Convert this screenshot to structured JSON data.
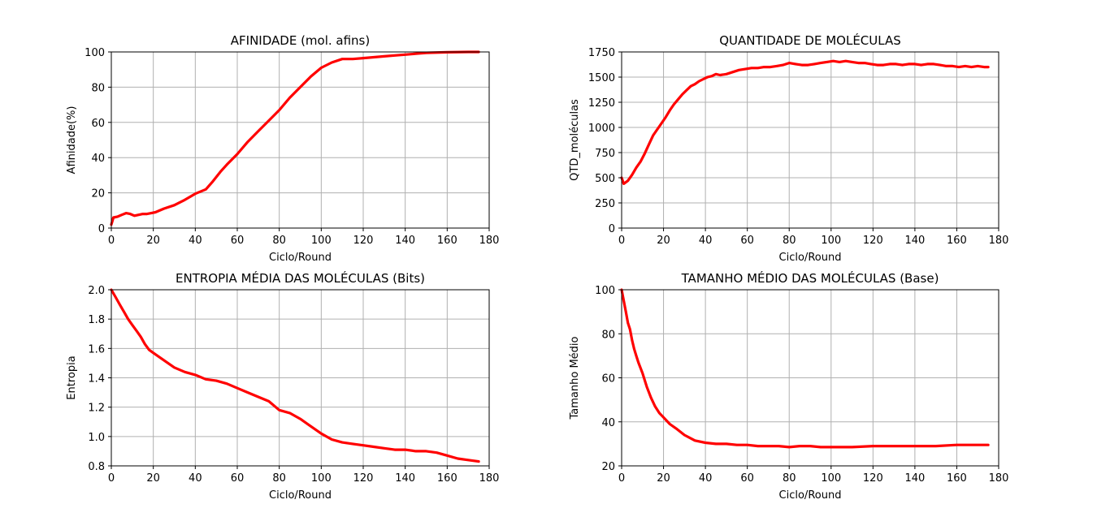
{
  "chart_data": [
    {
      "type": "line",
      "title": "AFINIDADE (mol. afins)",
      "xlabel": "Ciclo/Round",
      "ylabel": "Afinidade(%)",
      "xlim": [
        0,
        180
      ],
      "ylim": [
        0,
        100
      ],
      "xticks": [
        0,
        20,
        40,
        60,
        80,
        100,
        120,
        140,
        160,
        180
      ],
      "yticks": [
        0,
        20,
        40,
        60,
        80,
        100
      ],
      "ytick_labels": [
        "0",
        "20",
        "40",
        "60",
        "80",
        "100"
      ],
      "grid": true,
      "color": "#ff0000",
      "series": [
        {
          "x": [
            0,
            1,
            3,
            5,
            7,
            9,
            11,
            13,
            15,
            17,
            19,
            21,
            25,
            30,
            35,
            40,
            45,
            48,
            52,
            55,
            60,
            65,
            70,
            75,
            80,
            85,
            90,
            95,
            100,
            105,
            110,
            115,
            120,
            125,
            130,
            135,
            140,
            145,
            150,
            160,
            170,
            175
          ],
          "y": [
            2,
            6,
            6.5,
            7.5,
            8.5,
            8,
            7,
            7.5,
            8,
            8,
            8.5,
            9,
            11,
            13,
            16,
            19.5,
            22,
            26,
            32,
            36,
            42,
            49,
            55,
            61,
            67,
            74,
            80,
            86,
            91,
            94,
            96,
            96,
            96.5,
            97,
            97.5,
            98,
            98.5,
            99,
            99.5,
            99.8,
            100,
            100
          ]
        }
      ]
    },
    {
      "type": "line",
      "title": "QUANTIDADE DE MOLÉCULAS",
      "xlabel": "Ciclo/Round",
      "ylabel": "QTD_moléculas",
      "xlim": [
        0,
        180
      ],
      "ylim": [
        0,
        1750
      ],
      "xticks": [
        0,
        20,
        40,
        60,
        80,
        100,
        120,
        140,
        160,
        180
      ],
      "yticks": [
        0,
        250,
        500,
        750,
        1000,
        1250,
        1500,
        1750
      ],
      "ytick_labels": [
        "0",
        "250",
        "500",
        "750",
        "1000",
        "1250",
        "1500",
        "1750"
      ],
      "grid": true,
      "color": "#ff0000",
      "series": [
        {
          "x": [
            0,
            1,
            3,
            5,
            7,
            9,
            11,
            13,
            15,
            17,
            19,
            21,
            23,
            25,
            27,
            29,
            31,
            33,
            35,
            37,
            39,
            41,
            43,
            45,
            47,
            50,
            53,
            56,
            59,
            62,
            65,
            68,
            71,
            74,
            77,
            80,
            83,
            86,
            89,
            92,
            95,
            98,
            101,
            104,
            107,
            110,
            113,
            116,
            119,
            122,
            125,
            128,
            131,
            134,
            137,
            140,
            143,
            146,
            149,
            152,
            155,
            158,
            161,
            164,
            167,
            170,
            173,
            175
          ],
          "y": [
            500,
            440,
            470,
            530,
            600,
            660,
            740,
            830,
            920,
            980,
            1040,
            1100,
            1170,
            1230,
            1280,
            1330,
            1370,
            1410,
            1430,
            1460,
            1480,
            1500,
            1510,
            1530,
            1520,
            1530,
            1550,
            1570,
            1580,
            1590,
            1590,
            1600,
            1600,
            1610,
            1620,
            1640,
            1630,
            1620,
            1620,
            1630,
            1640,
            1650,
            1660,
            1650,
            1660,
            1650,
            1640,
            1640,
            1630,
            1620,
            1620,
            1630,
            1630,
            1620,
            1630,
            1630,
            1620,
            1630,
            1630,
            1620,
            1610,
            1610,
            1600,
            1610,
            1600,
            1610,
            1600,
            1600
          ]
        }
      ]
    },
    {
      "type": "line",
      "title": "ENTROPIA MÉDIA DAS MOLÉCULAS (Bits)",
      "xlabel": "Ciclo/Round",
      "ylabel": "Entropia",
      "xlim": [
        0,
        180
      ],
      "ylim": [
        0.8,
        2.0
      ],
      "xticks": [
        0,
        20,
        40,
        60,
        80,
        100,
        120,
        140,
        160,
        180
      ],
      "yticks": [
        0.8,
        1.0,
        1.2,
        1.4,
        1.6,
        1.8,
        2.0
      ],
      "ytick_labels": [
        "0.8",
        "1.0",
        "1.2",
        "1.4",
        "1.6",
        "1.8",
        "2.0"
      ],
      "grid": true,
      "color": "#ff0000",
      "series": [
        {
          "x": [
            0,
            2,
            4,
            6,
            8,
            10,
            12,
            14,
            16,
            18,
            20,
            25,
            30,
            35,
            40,
            45,
            50,
            55,
            60,
            65,
            70,
            75,
            80,
            85,
            90,
            95,
            100,
            105,
            110,
            115,
            120,
            125,
            130,
            135,
            140,
            145,
            150,
            155,
            160,
            165,
            170,
            175
          ],
          "y": [
            2.0,
            1.95,
            1.9,
            1.85,
            1.8,
            1.76,
            1.72,
            1.68,
            1.63,
            1.59,
            1.57,
            1.52,
            1.47,
            1.44,
            1.42,
            1.39,
            1.38,
            1.36,
            1.33,
            1.3,
            1.27,
            1.24,
            1.18,
            1.16,
            1.12,
            1.07,
            1.02,
            0.98,
            0.96,
            0.95,
            0.94,
            0.93,
            0.92,
            0.91,
            0.91,
            0.9,
            0.9,
            0.89,
            0.87,
            0.85,
            0.84,
            0.83
          ]
        }
      ]
    },
    {
      "type": "line",
      "title": "TAMANHO MÉDIO DAS MOLÉCULAS (Base)",
      "xlabel": "Ciclo/Round",
      "ylabel": "Tamanho Médio",
      "xlim": [
        0,
        180
      ],
      "ylim": [
        20,
        100
      ],
      "xticks": [
        0,
        20,
        40,
        60,
        80,
        100,
        120,
        140,
        160,
        180
      ],
      "yticks": [
        20,
        40,
        60,
        80,
        100
      ],
      "ytick_labels": [
        "20",
        "40",
        "60",
        "80",
        "100"
      ],
      "grid": true,
      "color": "#ff0000",
      "series": [
        {
          "x": [
            0,
            1,
            2,
            3,
            4,
            5,
            6,
            7,
            8,
            10,
            12,
            14,
            16,
            18,
            20,
            23,
            26,
            30,
            35,
            40,
            45,
            50,
            55,
            60,
            65,
            70,
            75,
            80,
            85,
            90,
            95,
            100,
            110,
            120,
            130,
            140,
            150,
            160,
            170,
            175
          ],
          "y": [
            100,
            95,
            90,
            85,
            82,
            77,
            73,
            70,
            67,
            62,
            56,
            51,
            47,
            44,
            42,
            39,
            37,
            34,
            31.5,
            30.5,
            30,
            30,
            29.5,
            29.5,
            29,
            29,
            29,
            28.5,
            29,
            29,
            28.5,
            28.5,
            28.5,
            29,
            29,
            29,
            29,
            29.5,
            29.5,
            29.5
          ]
        }
      ]
    }
  ]
}
